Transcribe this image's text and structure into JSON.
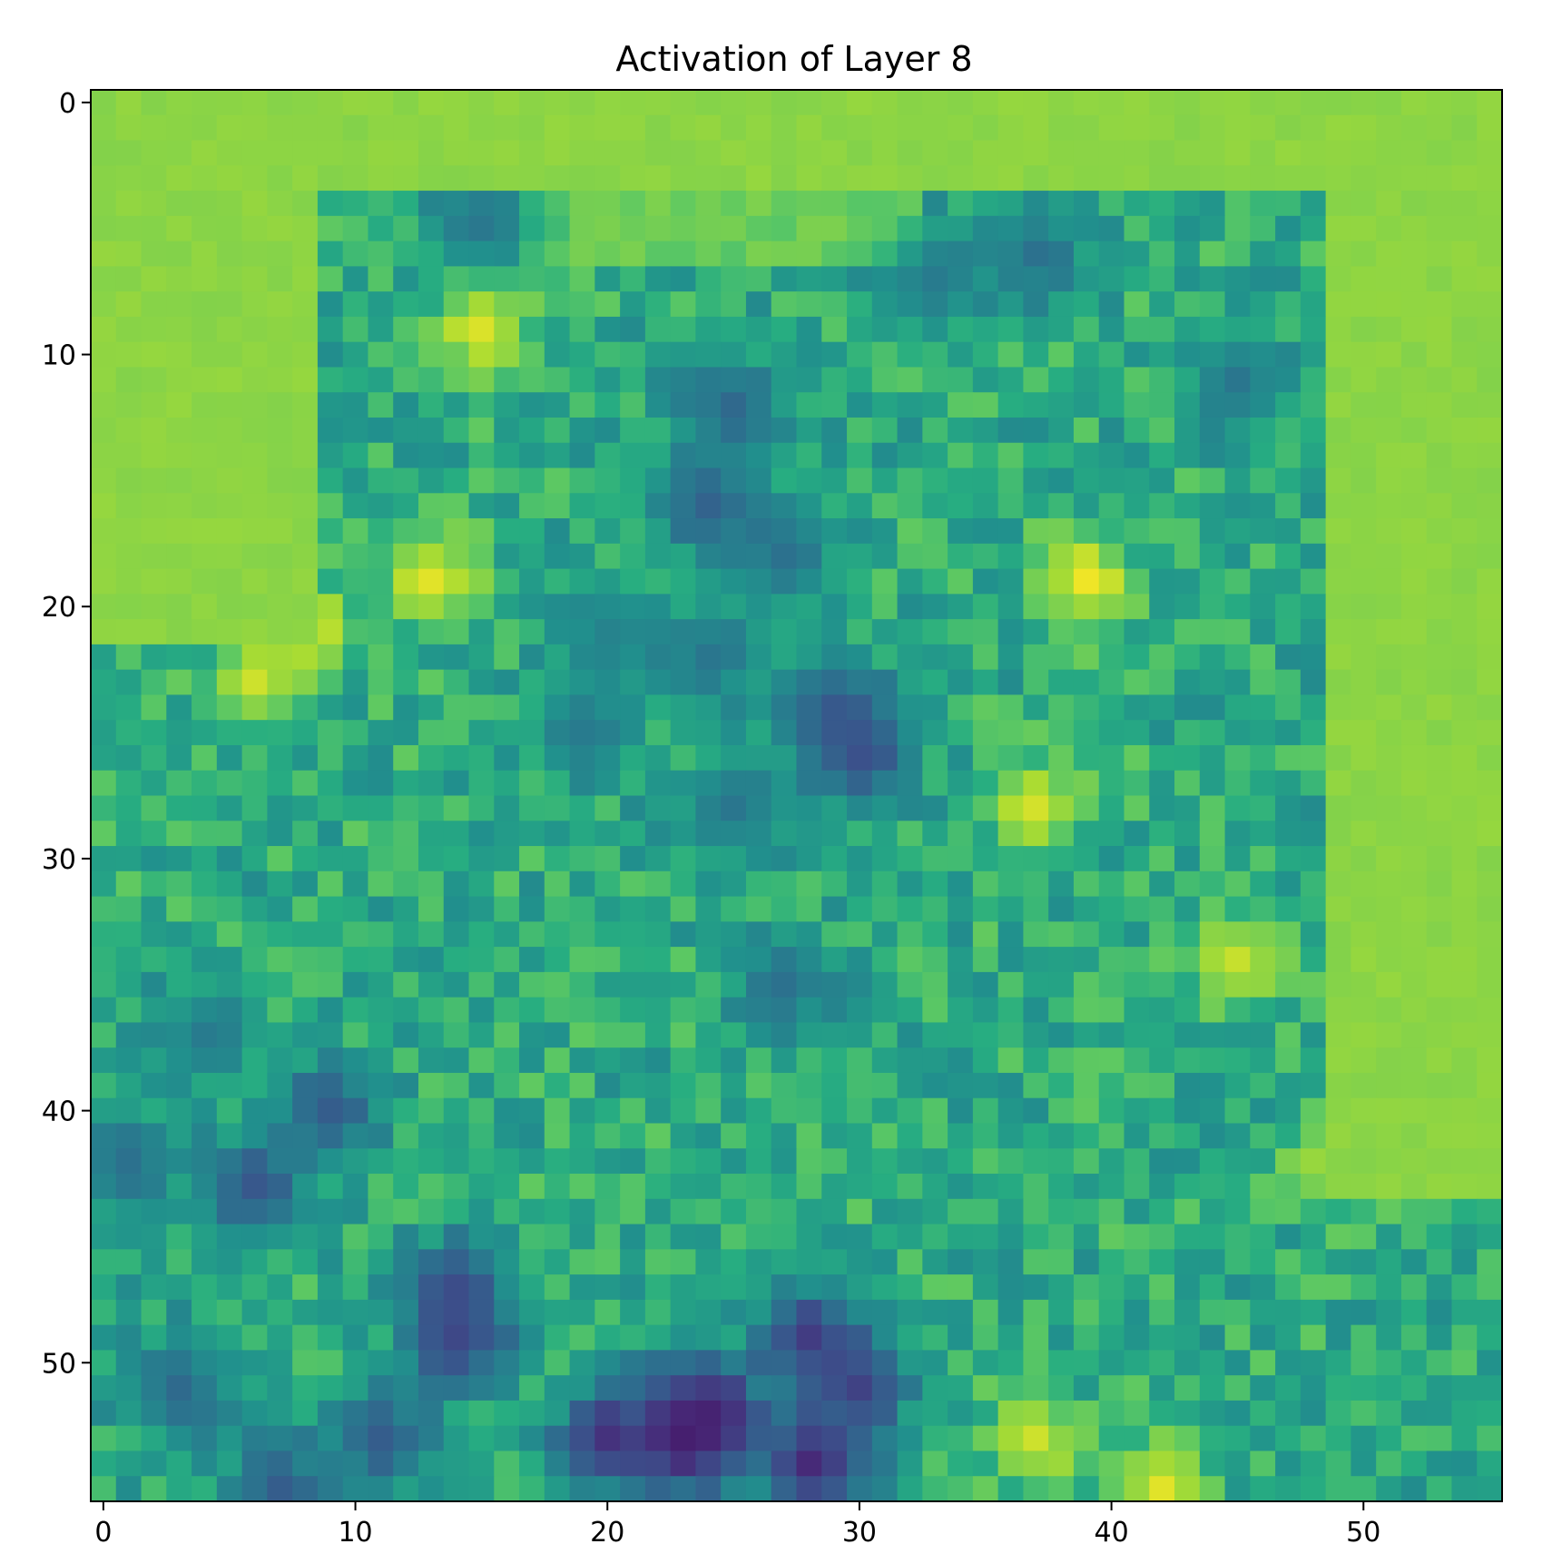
{
  "chart_data": {
    "type": "heatmap",
    "title": "Activation of Layer 8",
    "xlabel": "",
    "ylabel": "",
    "grid_size": 56,
    "xlim": [
      -0.5,
      55.5
    ],
    "ylim": [
      55.5,
      -0.5
    ],
    "x_ticks": [
      0,
      10,
      20,
      30,
      40,
      50
    ],
    "y_ticks": [
      0,
      10,
      20,
      30,
      40,
      50
    ],
    "colormap": "viridis",
    "grid": false,
    "colorbar": false,
    "value_range": [
      0.0,
      1.0
    ],
    "background_level": 0.83,
    "map_description": "Low activation regions (dark blue/purple) shown as value points; surrounding field fills with background_level",
    "low_regions": [
      {
        "x": 15,
        "y": 5,
        "value": 0.4
      },
      {
        "x": 37,
        "y": 6,
        "value": 0.38
      },
      {
        "x": 33,
        "y": 7,
        "value": 0.42
      },
      {
        "x": 45,
        "y": 11,
        "value": 0.4
      },
      {
        "x": 25,
        "y": 12,
        "value": 0.35
      },
      {
        "x": 24,
        "y": 16,
        "value": 0.32
      },
      {
        "x": 27,
        "y": 18,
        "value": 0.38
      },
      {
        "x": 20,
        "y": 21,
        "value": 0.45
      },
      {
        "x": 24,
        "y": 22,
        "value": 0.4
      },
      {
        "x": 29,
        "y": 24,
        "value": 0.3
      },
      {
        "x": 30,
        "y": 26,
        "value": 0.25
      },
      {
        "x": 19,
        "y": 25,
        "value": 0.42
      },
      {
        "x": 25,
        "y": 28,
        "value": 0.4
      },
      {
        "x": 27,
        "y": 35,
        "value": 0.38
      },
      {
        "x": 9,
        "y": 40,
        "value": 0.3
      },
      {
        "x": 6,
        "y": 43,
        "value": 0.28
      },
      {
        "x": 14,
        "y": 47,
        "value": 0.25
      },
      {
        "x": 14,
        "y": 49,
        "value": 0.22
      },
      {
        "x": 23,
        "y": 53,
        "value": 0.05
      },
      {
        "x": 24,
        "y": 52,
        "value": 0.1
      },
      {
        "x": 28,
        "y": 54,
        "value": 0.12
      },
      {
        "x": 28,
        "y": 49,
        "value": 0.18
      },
      {
        "x": 30,
        "y": 51,
        "value": 0.2
      },
      {
        "x": 20,
        "y": 53,
        "value": 0.15
      },
      {
        "x": 3,
        "y": 51,
        "value": 0.35
      },
      {
        "x": 11,
        "y": 53,
        "value": 0.3
      },
      {
        "x": 7,
        "y": 55,
        "value": 0.3
      },
      {
        "x": 4,
        "y": 37,
        "value": 0.42
      },
      {
        "x": 1,
        "y": 42,
        "value": 0.38
      }
    ],
    "high_regions": [
      {
        "x": 15,
        "y": 9,
        "value": 0.95
      },
      {
        "x": 13,
        "y": 19,
        "value": 0.96
      },
      {
        "x": 8,
        "y": 21,
        "value": 0.97
      },
      {
        "x": 6,
        "y": 23,
        "value": 0.93
      },
      {
        "x": 39,
        "y": 19,
        "value": 0.98
      },
      {
        "x": 37,
        "y": 28,
        "value": 0.94
      },
      {
        "x": 45,
        "y": 34,
        "value": 0.92
      },
      {
        "x": 49,
        "y": 42,
        "value": 0.92
      },
      {
        "x": 42,
        "y": 55,
        "value": 0.96
      },
      {
        "x": 37,
        "y": 53,
        "value": 0.93
      }
    ]
  }
}
